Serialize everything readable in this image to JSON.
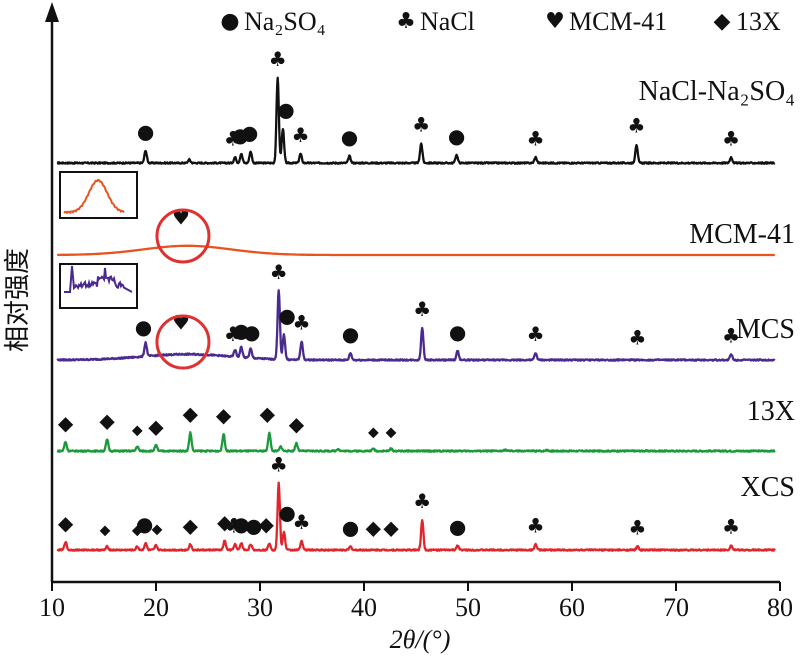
{
  "chart_data": {
    "type": "line",
    "xlabel": "2θ/(°)",
    "ylabel": "相对强度",
    "xlim": [
      10,
      80
    ],
    "xticks": [
      "10",
      "20",
      "30",
      "40",
      "50",
      "60",
      "70",
      "80"
    ],
    "legend": {
      "placement": "top",
      "entries": [
        {
          "marker": "●",
          "label": "Na₂SO₄"
        },
        {
          "marker": "♣",
          "label": "NaCl"
        },
        {
          "marker": "♥",
          "label": "MCM-41"
        },
        {
          "marker": "◆",
          "label": "13X"
        }
      ]
    },
    "series": [
      {
        "name": "NaCl-Na₂SO₄",
        "color": "#111111",
        "label_text": "NaCl-Na₂SO₄",
        "peaks": [
          {
            "x": 19.0,
            "h": 0.11
          },
          {
            "x": 23.2,
            "h": 0.03
          },
          {
            "x": 27.6,
            "h": 0.05
          },
          {
            "x": 28.2,
            "h": 0.08
          },
          {
            "x": 29.1,
            "h": 0.1
          },
          {
            "x": 31.7,
            "h": 0.74
          },
          {
            "x": 32.2,
            "h": 0.3
          },
          {
            "x": 33.9,
            "h": 0.08
          },
          {
            "x": 38.6,
            "h": 0.06
          },
          {
            "x": 45.5,
            "h": 0.17
          },
          {
            "x": 48.9,
            "h": 0.07
          },
          {
            "x": 56.5,
            "h": 0.05
          },
          {
            "x": 66.2,
            "h": 0.16
          },
          {
            "x": 75.3,
            "h": 0.05
          }
        ],
        "markers": [
          {
            "x": 19.0,
            "sym": "●"
          },
          {
            "x": 27.4,
            "sym": "♣"
          },
          {
            "x": 28.1,
            "sym": "●"
          },
          {
            "x": 29.0,
            "sym": "●"
          },
          {
            "x": 31.7,
            "sym": "♣"
          },
          {
            "x": 32.5,
            "sym": "●"
          },
          {
            "x": 33.9,
            "sym": "♣"
          },
          {
            "x": 38.6,
            "sym": "●"
          },
          {
            "x": 45.5,
            "sym": "♣"
          },
          {
            "x": 48.9,
            "sym": "●"
          },
          {
            "x": 56.5,
            "sym": "♣"
          },
          {
            "x": 66.2,
            "sym": "♣"
          },
          {
            "x": 75.3,
            "sym": "♣"
          }
        ]
      },
      {
        "name": "MCM-41",
        "color": "#e8541e",
        "label_text": "MCM-41",
        "broad_hump": {
          "center": 23.0,
          "width": 6.0,
          "h": 0.08
        },
        "markers": [
          {
            "x": 22.4,
            "sym": "♥"
          }
        ]
      },
      {
        "name": "MCS",
        "color": "#4b2a8f",
        "label_text": "MCS",
        "broad_hump": {
          "center": 23.0,
          "width": 6.0,
          "h": 0.05
        },
        "peaks": [
          {
            "x": 19.0,
            "h": 0.12
          },
          {
            "x": 27.6,
            "h": 0.06
          },
          {
            "x": 28.2,
            "h": 0.09
          },
          {
            "x": 29.1,
            "h": 0.08
          },
          {
            "x": 31.8,
            "h": 0.6
          },
          {
            "x": 32.3,
            "h": 0.22
          },
          {
            "x": 34.0,
            "h": 0.16
          },
          {
            "x": 38.7,
            "h": 0.06
          },
          {
            "x": 45.6,
            "h": 0.28
          },
          {
            "x": 49.0,
            "h": 0.08
          },
          {
            "x": 56.5,
            "h": 0.06
          },
          {
            "x": 75.3,
            "h": 0.05
          }
        ],
        "markers": [
          {
            "x": 18.8,
            "sym": "●"
          },
          {
            "x": 22.4,
            "sym": "♥"
          },
          {
            "x": 27.4,
            "sym": "♣"
          },
          {
            "x": 28.2,
            "sym": "●"
          },
          {
            "x": 29.2,
            "sym": "●"
          },
          {
            "x": 31.8,
            "sym": "♣"
          },
          {
            "x": 32.6,
            "sym": "●"
          },
          {
            "x": 34.0,
            "sym": "♣"
          },
          {
            "x": 38.7,
            "sym": "●"
          },
          {
            "x": 45.6,
            "sym": "♣"
          },
          {
            "x": 49.0,
            "sym": "●"
          },
          {
            "x": 56.5,
            "sym": "♣"
          },
          {
            "x": 66.3,
            "sym": "♣"
          },
          {
            "x": 75.3,
            "sym": "♣"
          }
        ]
      },
      {
        "name": "13X",
        "color": "#1a9a3a",
        "label_text": "13X",
        "peaks": [
          {
            "x": 11.3,
            "h": 0.08
          },
          {
            "x": 15.3,
            "h": 0.1
          },
          {
            "x": 18.2,
            "h": 0.04
          },
          {
            "x": 20.0,
            "h": 0.05
          },
          {
            "x": 23.3,
            "h": 0.16
          },
          {
            "x": 26.5,
            "h": 0.15
          },
          {
            "x": 30.9,
            "h": 0.16
          },
          {
            "x": 32.0,
            "h": 0.04
          },
          {
            "x": 33.5,
            "h": 0.07
          },
          {
            "x": 37.5,
            "h": 0.02
          },
          {
            "x": 40.9,
            "h": 0.02
          },
          {
            "x": 42.6,
            "h": 0.02
          },
          {
            "x": 53.6,
            "h": 0.01
          },
          {
            "x": 57.6,
            "h": 0.01
          }
        ],
        "markers": [
          {
            "x": 11.3,
            "sym": "◆"
          },
          {
            "x": 15.3,
            "sym": "◆"
          },
          {
            "x": 18.2,
            "sym": "◆"
          },
          {
            "x": 20.0,
            "sym": "◆"
          },
          {
            "x": 23.3,
            "sym": "◆"
          },
          {
            "x": 26.5,
            "sym": "◆"
          },
          {
            "x": 30.7,
            "sym": "◆"
          },
          {
            "x": 33.5,
            "sym": "◆"
          },
          {
            "x": 40.9,
            "sym": "◆"
          },
          {
            "x": 42.6,
            "sym": "◆"
          }
        ]
      },
      {
        "name": "XCS",
        "color": "#e0252b",
        "label_text": "XCS",
        "peaks": [
          {
            "x": 11.3,
            "h": 0.07
          },
          {
            "x": 15.3,
            "h": 0.03
          },
          {
            "x": 18.2,
            "h": 0.03
          },
          {
            "x": 19.0,
            "h": 0.06
          },
          {
            "x": 20.0,
            "h": 0.04
          },
          {
            "x": 23.3,
            "h": 0.05
          },
          {
            "x": 26.6,
            "h": 0.08
          },
          {
            "x": 27.6,
            "h": 0.05
          },
          {
            "x": 28.2,
            "h": 0.06
          },
          {
            "x": 29.1,
            "h": 0.05
          },
          {
            "x": 30.9,
            "h": 0.06
          },
          {
            "x": 31.8,
            "h": 0.58
          },
          {
            "x": 32.3,
            "h": 0.16
          },
          {
            "x": 34.0,
            "h": 0.08
          },
          {
            "x": 38.7,
            "h": 0.03
          },
          {
            "x": 45.6,
            "h": 0.26
          },
          {
            "x": 49.0,
            "h": 0.04
          },
          {
            "x": 56.5,
            "h": 0.05
          },
          {
            "x": 66.3,
            "h": 0.03
          },
          {
            "x": 75.3,
            "h": 0.04
          }
        ],
        "markers": [
          {
            "x": 11.3,
            "sym": "◆"
          },
          {
            "x": 15.1,
            "sym": "◆"
          },
          {
            "x": 18.2,
            "sym": "◆"
          },
          {
            "x": 18.9,
            "sym": "●"
          },
          {
            "x": 20.1,
            "sym": "◆"
          },
          {
            "x": 23.3,
            "sym": "◆"
          },
          {
            "x": 26.6,
            "sym": "◆"
          },
          {
            "x": 27.5,
            "sym": "♣"
          },
          {
            "x": 28.2,
            "sym": "●"
          },
          {
            "x": 29.4,
            "sym": "●"
          },
          {
            "x": 30.6,
            "sym": "◆"
          },
          {
            "x": 31.8,
            "sym": "♣"
          },
          {
            "x": 32.6,
            "sym": "●"
          },
          {
            "x": 34.0,
            "sym": "♣"
          },
          {
            "x": 38.7,
            "sym": "●"
          },
          {
            "x": 40.9,
            "sym": "◆"
          },
          {
            "x": 42.6,
            "sym": "◆"
          },
          {
            "x": 45.6,
            "sym": "♣"
          },
          {
            "x": 49.0,
            "sym": "●"
          },
          {
            "x": 56.5,
            "sym": "♣"
          },
          {
            "x": 66.3,
            "sym": "♣"
          },
          {
            "x": 75.3,
            "sym": "♣"
          }
        ]
      }
    ],
    "insets": [
      {
        "series": "MCM-41",
        "color": "#e8541e"
      },
      {
        "series": "MCS",
        "color": "#4b2a8f"
      }
    ],
    "highlight_circles": [
      {
        "series": "MCM-41",
        "x": 22.4,
        "color": "#e03030"
      },
      {
        "series": "MCS",
        "x": 22.4,
        "color": "#e03030"
      }
    ]
  }
}
